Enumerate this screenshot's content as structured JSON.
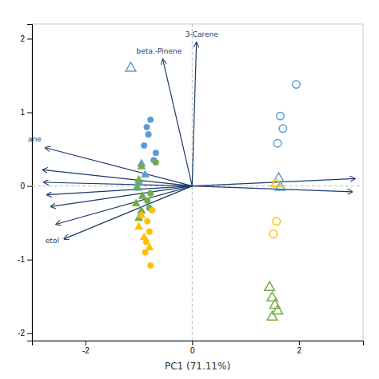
{
  "chart_data": {
    "type": "scatter",
    "xlabel": "PC1 (71.11%)",
    "xlim": [
      -3.0,
      3.2
    ],
    "ylim": [
      -2.1,
      2.2
    ],
    "xticks": [
      -2,
      0,
      2
    ],
    "yticks": [
      -2,
      -1,
      0,
      1,
      2
    ],
    "grid": false,
    "reference_lines": {
      "x": [
        0
      ],
      "y": [
        0
      ],
      "color": "#bbbbbb",
      "line_style": "dashed"
    },
    "arrows": {
      "color": "#1a3a6b",
      "origin": {
        "x": 0,
        "y": 0
      },
      "x": [
        -0.55,
        0.08,
        -2.75,
        -2.8,
        -2.78,
        -2.72,
        -2.65,
        -2.55,
        -2.4,
        3.05,
        3.0
      ],
      "y": [
        1.72,
        1.95,
        0.52,
        0.22,
        0.05,
        -0.12,
        -0.28,
        -0.52,
        -0.72,
        0.1,
        -0.08
      ]
    },
    "annotations": [
      {
        "text": "beta.-Pinene",
        "x": -0.62,
        "y": 1.8
      },
      {
        "text": "3-Carene",
        "x": 0.18,
        "y": 2.03
      },
      {
        "text": "ane",
        "x": -2.95,
        "y": 0.6
      },
      {
        "text": "etol",
        "x": -2.62,
        "y": -0.78
      }
    ],
    "series": [
      {
        "color": "#5b9bd5",
        "marker": "circle",
        "x": [
          -0.78,
          -0.85,
          -0.82,
          -0.9,
          -0.68,
          -0.72
        ],
        "values": [
          0.9,
          0.8,
          0.7,
          0.55,
          0.45,
          0.35
        ]
      },
      {
        "color": "#5b9bd5",
        "marker": "triangle",
        "x": [
          -0.95,
          -0.88,
          -1.0,
          -1.02
        ],
        "values": [
          0.3,
          0.15,
          0.05,
          -0.03
        ]
      },
      {
        "color": "#5b9bd5",
        "marker": "circle-open",
        "x": [
          1.95,
          1.65,
          1.7,
          1.6
        ],
        "values": [
          1.38,
          0.95,
          0.78,
          0.58
        ]
      },
      {
        "color": "#5b9bd5",
        "marker": "triangle-open",
        "x": [
          -1.15,
          1.62,
          1.65
        ],
        "values": [
          1.6,
          0.1,
          -0.02
        ]
      },
      {
        "color": "#70ad47",
        "marker": "circle",
        "x": [
          -0.68,
          -0.78,
          -0.84,
          -0.8
        ],
        "values": [
          0.32,
          -0.1,
          -0.2,
          -0.3
        ]
      },
      {
        "color": "#70ad47",
        "marker": "triangle",
        "x": [
          -0.95,
          -1.0,
          -1.03,
          -0.93,
          -1.05,
          -0.95,
          -1.0
        ],
        "values": [
          0.26,
          0.08,
          -0.02,
          -0.14,
          -0.24,
          -0.34,
          -0.44
        ]
      },
      {
        "color": "#70ad47",
        "marker": "triangle-open",
        "x": [
          1.45,
          1.5,
          1.55,
          1.6,
          1.5
        ],
        "values": [
          -1.38,
          -1.52,
          -1.62,
          -1.7,
          -1.78
        ]
      },
      {
        "color": "#ffc000",
        "marker": "circle",
        "x": [
          -0.75,
          -0.84,
          -0.8,
          -0.86,
          -0.88,
          -0.78
        ],
        "values": [
          -0.33,
          -0.48,
          -0.62,
          -0.76,
          -0.9,
          -1.08
        ]
      },
      {
        "color": "#ffc000",
        "marker": "triangle",
        "x": [
          -0.95,
          -1.0,
          -0.9,
          -0.8
        ],
        "values": [
          -0.4,
          -0.56,
          -0.7,
          -0.84
        ]
      },
      {
        "color": "#ffc000",
        "marker": "circle-open",
        "x": [
          1.58,
          1.52
        ],
        "values": [
          -0.48,
          -0.65
        ]
      },
      {
        "color": "#ffc000",
        "marker": "triangle-open",
        "x": [
          1.57
        ],
        "values": [
          0.03
        ]
      }
    ]
  }
}
